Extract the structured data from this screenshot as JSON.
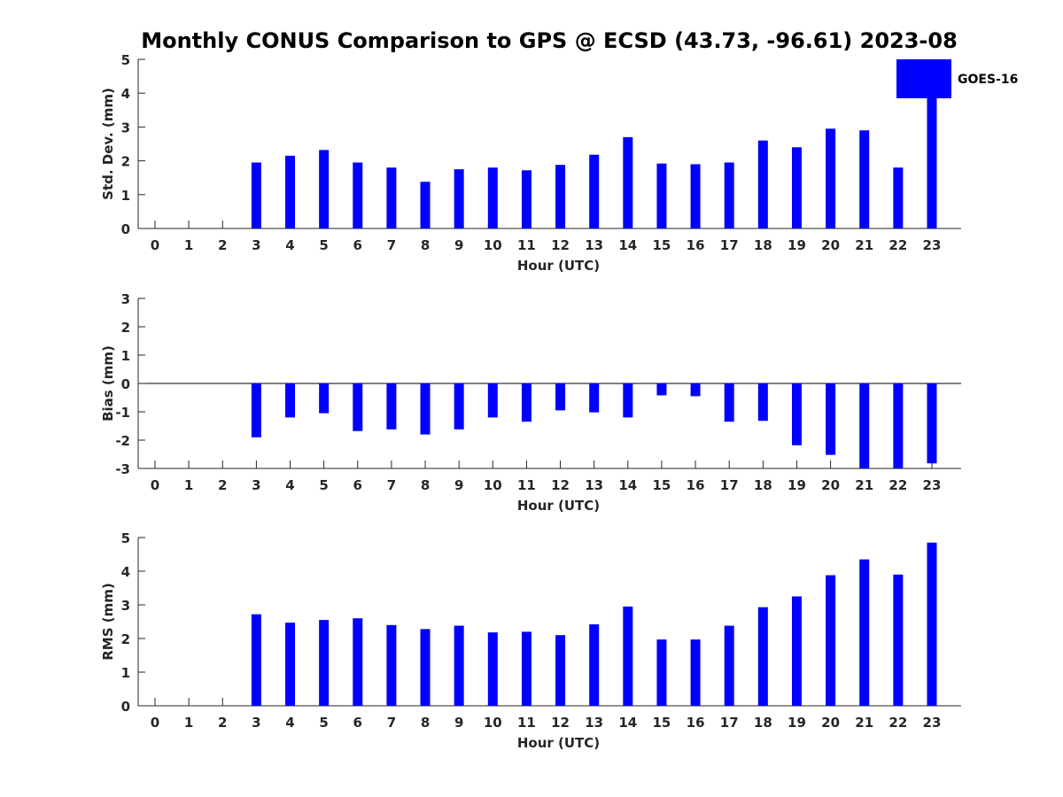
{
  "title": "Monthly CONUS Comparison to GPS @ ECSD (43.73, -96.61) 2023-08",
  "legend": {
    "label": "GOES-16",
    "color": "#0000ff",
    "placement": "top-right"
  },
  "chart_data": [
    {
      "type": "bar",
      "xlabel": "Hour (UTC)",
      "ylabel": "Std. Dev. (mm)",
      "ylim": [
        0,
        5
      ],
      "yticks": [
        "0",
        "1",
        "2",
        "3",
        "4",
        "5"
      ],
      "categories": [
        "0",
        "1",
        "2",
        "3",
        "4",
        "5",
        "6",
        "7",
        "8",
        "9",
        "10",
        "11",
        "12",
        "13",
        "14",
        "15",
        "16",
        "17",
        "18",
        "19",
        "20",
        "21",
        "22",
        "23"
      ],
      "values": [
        null,
        null,
        null,
        1.95,
        2.15,
        2.32,
        1.95,
        1.8,
        1.38,
        1.75,
        1.8,
        1.72,
        1.88,
        2.18,
        2.7,
        1.92,
        1.9,
        1.95,
        2.6,
        2.4,
        2.95,
        2.9,
        1.8,
        3.85
      ],
      "series_name": "GOES-16",
      "grid": false
    },
    {
      "type": "bar",
      "xlabel": "Hour (UTC)",
      "ylabel": "Bias (mm)",
      "ylim": [
        -3,
        3
      ],
      "yticks": [
        "-3",
        "-2",
        "-1",
        "0",
        "1",
        "2",
        "3"
      ],
      "categories": [
        "0",
        "1",
        "2",
        "3",
        "4",
        "5",
        "6",
        "7",
        "8",
        "9",
        "10",
        "11",
        "12",
        "13",
        "14",
        "15",
        "16",
        "17",
        "18",
        "19",
        "20",
        "21",
        "22",
        "23"
      ],
      "values": [
        null,
        null,
        null,
        -1.9,
        -1.2,
        -1.05,
        -1.68,
        -1.62,
        -1.8,
        -1.62,
        -1.2,
        -1.35,
        -0.95,
        -1.02,
        -1.2,
        -0.42,
        -0.45,
        -1.35,
        -1.32,
        -2.18,
        -2.52,
        -3.0,
        -3.0,
        -2.82
      ],
      "series_name": "GOES-16",
      "grid": false
    },
    {
      "type": "bar",
      "xlabel": "Hour (UTC)",
      "ylabel": "RMS (mm)",
      "ylim": [
        0,
        5
      ],
      "yticks": [
        "0",
        "1",
        "2",
        "3",
        "4",
        "5"
      ],
      "categories": [
        "0",
        "1",
        "2",
        "3",
        "4",
        "5",
        "6",
        "7",
        "8",
        "9",
        "10",
        "11",
        "12",
        "13",
        "14",
        "15",
        "16",
        "17",
        "18",
        "19",
        "20",
        "21",
        "22",
        "23"
      ],
      "values": [
        null,
        null,
        null,
        2.72,
        2.47,
        2.55,
        2.6,
        2.4,
        2.28,
        2.38,
        2.18,
        2.2,
        2.1,
        2.42,
        2.95,
        1.97,
        1.97,
        2.38,
        2.93,
        3.25,
        3.88,
        4.35,
        3.9,
        4.85
      ],
      "series_name": "GOES-16",
      "grid": false
    }
  ]
}
